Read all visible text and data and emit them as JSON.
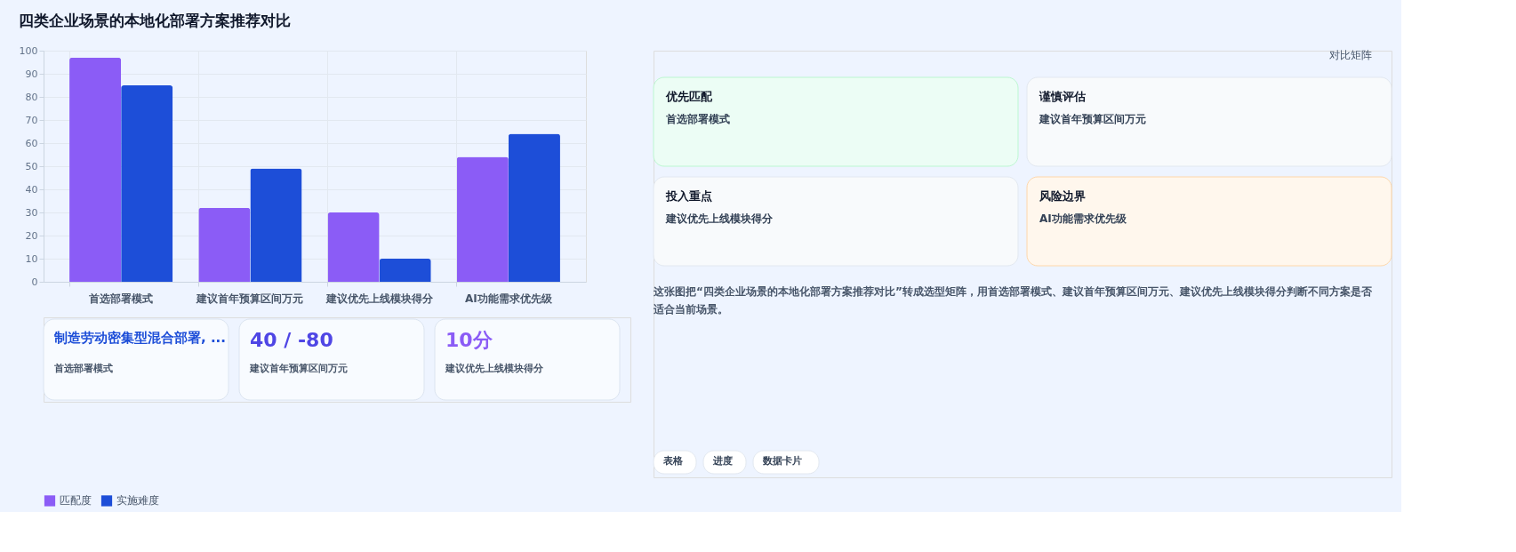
{
  "chart_data": [
    {
      "type": "bar",
      "title": "四类企业场景的本地化部署方案推荐对比",
      "categories": [
        "首选部署模式",
        "建议首年预算区间万元",
        "建议优先上线模块得分",
        "AI功能需求优先级"
      ],
      "series": [
        {
          "name": "匹配度",
          "color": "#8b5cf6",
          "values": [
            97,
            32,
            30,
            54
          ]
        },
        {
          "name": "实施难度",
          "color": "#1d4ed8",
          "values": [
            85,
            49,
            10,
            64
          ]
        }
      ],
      "ylim": [
        0,
        100
      ],
      "yticks": [
        0,
        10,
        20,
        30,
        40,
        50,
        60,
        70,
        80,
        90,
        100
      ],
      "grid": true,
      "legend": "bottom"
    },
    {
      "type": "other",
      "annotations": [
        "制造劳动密集型混合部署, ...",
        "首选部署模式",
        "40 / -80",
        "建议首年预算区间万元",
        "10分",
        "建议优先上线模块得分"
      ]
    },
    {
      "type": "other",
      "annotations": [
        "对比矩阵",
        "优先匹配",
        "首选部署模式",
        "谨慎评估",
        "建议首年预算区间万元",
        "投入重点",
        "建议优先上线模块得分",
        "风险边界",
        "AI功能需求优先级",
        "这张图把“四类企业场景的本地化部署方案推荐对比”转成选型矩阵，用首选部署模式、建议首年预算区间万元、建议优先上线模块得分判断不同方案是否适合当前场景。",
        "表格",
        "进度",
        "数据卡片"
      ]
    }
  ]
}
